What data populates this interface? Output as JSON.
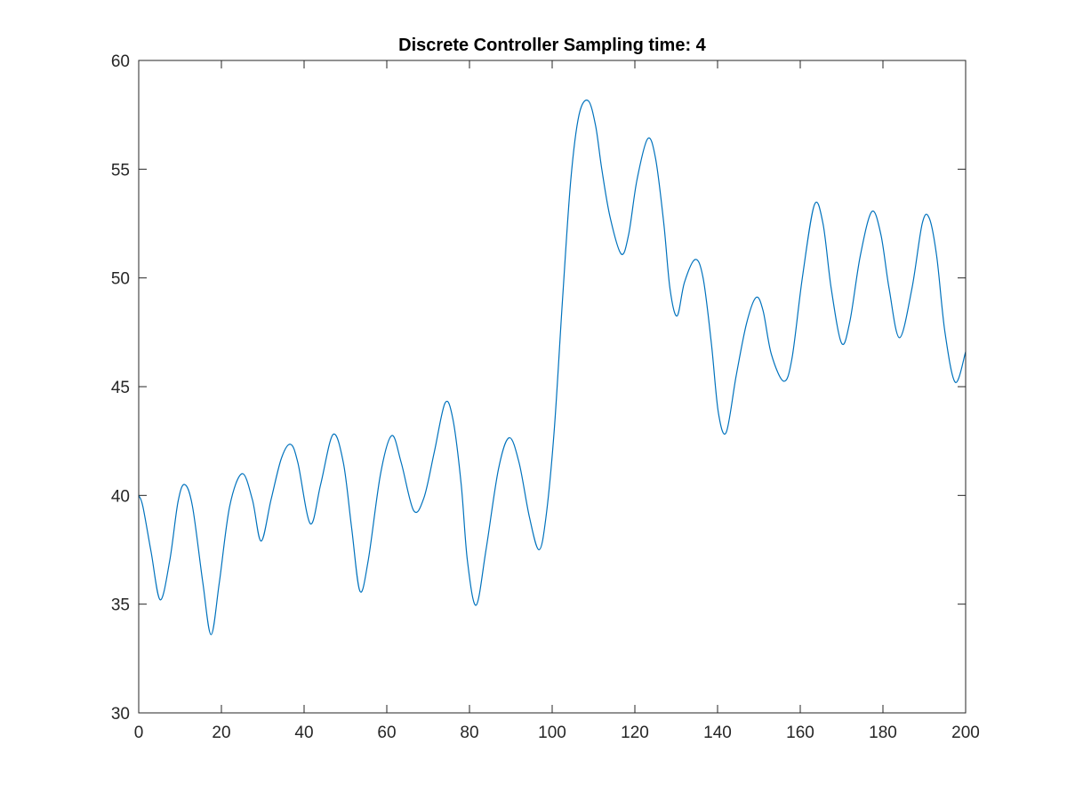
{
  "chart_data": {
    "type": "line",
    "title": "Discrete Controller Sampling time: 4",
    "xlabel": "",
    "ylabel": "",
    "xlim": [
      0,
      200
    ],
    "ylim": [
      30,
      60
    ],
    "xticks": [
      0,
      20,
      40,
      60,
      80,
      100,
      120,
      140,
      160,
      180,
      200
    ],
    "yticks": [
      30,
      35,
      40,
      45,
      50,
      55,
      60
    ],
    "xtick_labels": [
      "0",
      "20",
      "40",
      "60",
      "80",
      "100",
      "120",
      "140",
      "160",
      "180",
      "200"
    ],
    "ytick_labels": [
      "30",
      "35",
      "40",
      "45",
      "50",
      "55",
      "60"
    ],
    "grid": false,
    "legend": "none",
    "line_color": "#0072BD",
    "series": [
      {
        "x": [
          0,
          1,
          3,
          5.2,
          7.5,
          9.5,
          11.1,
          13,
          15.5,
          17.5,
          19.5,
          22,
          25,
          27.5,
          29.6,
          32,
          34.5,
          36.7,
          38.5,
          41.5,
          44,
          47,
          49.5,
          51.5,
          53.5,
          55.5,
          58.5,
          61.2,
          63.5,
          66.5,
          69,
          71.5,
          74.1,
          76,
          78,
          79.5,
          81.6,
          84,
          87,
          89.6,
          92,
          94.5,
          96.8,
          98.5,
          100.5,
          102.5,
          104.5,
          106.5,
          108.7,
          110.5,
          112,
          114,
          116.7,
          118.5,
          120.5,
          123.1,
          125,
          127,
          128.5,
          130.2,
          132,
          134.6,
          136.5,
          138.5,
          140.2,
          142.1,
          144.5,
          147,
          149.3,
          151,
          153,
          156,
          158,
          160.5,
          163.4,
          165.5,
          167.5,
          170,
          172,
          174.5,
          177.3,
          179.5,
          181.5,
          184,
          187,
          189.5,
          191.2,
          193,
          195,
          197.5,
          200
        ],
        "y": [
          40.0,
          39.5,
          37.4,
          35.2,
          37.0,
          39.7,
          40.5,
          39.5,
          36.0,
          33.6,
          36.0,
          39.5,
          41.0,
          39.8,
          37.9,
          39.8,
          41.7,
          42.35,
          41.5,
          38.7,
          40.5,
          42.8,
          41.5,
          38.5,
          35.6,
          37.0,
          41.0,
          42.75,
          41.5,
          39.3,
          39.9,
          42.0,
          44.25,
          43.5,
          40.5,
          37.0,
          34.95,
          37.5,
          41.2,
          42.65,
          41.5,
          39.0,
          37.5,
          39.0,
          43.0,
          49.0,
          54.5,
          57.5,
          58.15,
          57.0,
          55.0,
          52.8,
          51.1,
          52.0,
          54.5,
          56.4,
          55.5,
          52.5,
          49.5,
          48.25,
          49.8,
          50.85,
          50.0,
          47.0,
          43.8,
          42.9,
          45.5,
          47.9,
          49.1,
          48.5,
          46.5,
          45.25,
          46.3,
          50.0,
          53.35,
          52.5,
          49.5,
          47.0,
          48.0,
          51.0,
          53.05,
          52.0,
          49.5,
          47.25,
          49.5,
          52.5,
          52.75,
          51.0,
          47.5,
          45.2,
          46.6
        ]
      }
    ]
  }
}
